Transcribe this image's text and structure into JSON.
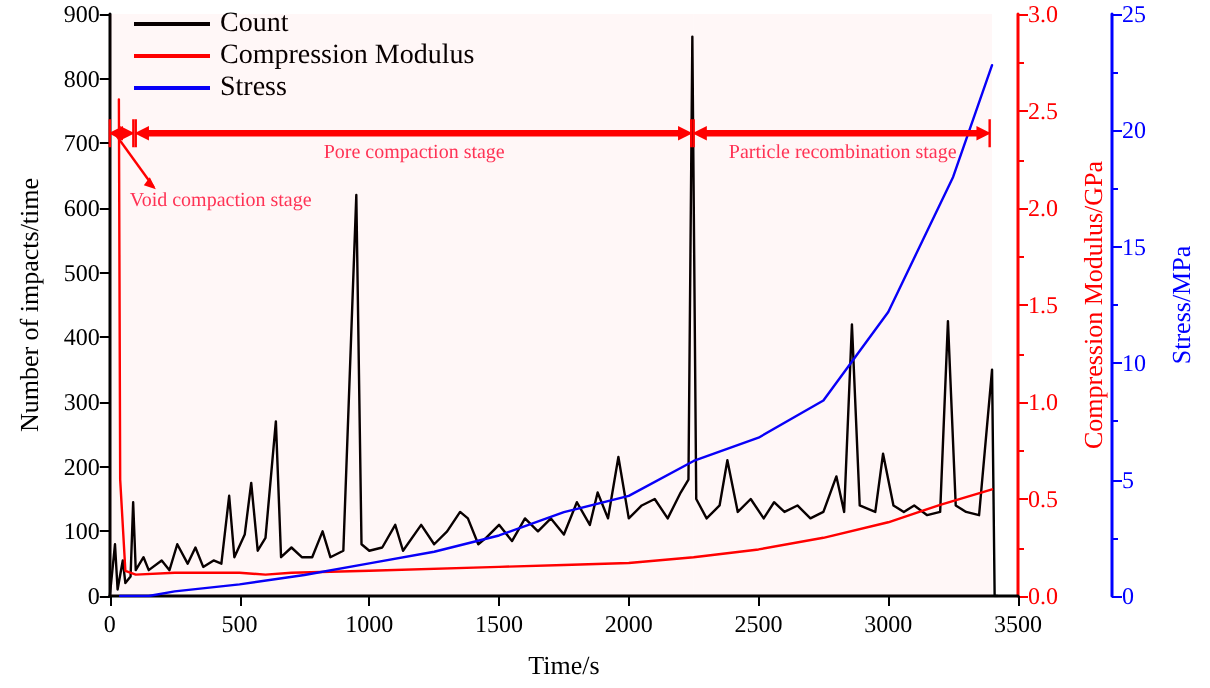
{
  "chart_data": {
    "type": "line",
    "xlabel": "Time/s",
    "ylabel": "Number of impacts/time",
    "y2label": "Compression Modulus/GPa",
    "y3label": "Stress/MPa",
    "xlim": [
      0,
      3500
    ],
    "xticks": [
      0,
      500,
      1000,
      1500,
      2000,
      2500,
      3000,
      3500
    ],
    "ylim": [
      0,
      900
    ],
    "yticks": [
      0,
      100,
      200,
      300,
      400,
      500,
      600,
      700,
      800,
      900
    ],
    "y2lim": [
      0,
      3.0
    ],
    "y2ticks": [
      {
        "value": 0,
        "label": "0.0"
      },
      {
        "value": 0.5,
        "label": "0.5"
      },
      {
        "value": 1,
        "label": "1.0"
      },
      {
        "value": 1.5,
        "label": "1.5"
      },
      {
        "value": 2,
        "label": "2.0"
      },
      {
        "value": 2.5,
        "label": "2.5"
      },
      {
        "value": 3,
        "label": "3.0"
      }
    ],
    "y3lim": [
      0,
      25
    ],
    "y3ticks": [
      0,
      5,
      10,
      15,
      20,
      25
    ],
    "legend": "top left",
    "grid": false,
    "series": [
      {
        "name": "Count",
        "color": "#000000",
        "x": [
          0,
          20,
          30,
          50,
          60,
          80,
          90,
          100,
          130,
          150,
          200,
          230,
          260,
          300,
          330,
          360,
          400,
          430,
          460,
          480,
          520,
          545,
          570,
          600,
          640,
          660,
          700,
          740,
          780,
          820,
          850,
          900,
          950,
          970,
          1000,
          1050,
          1100,
          1130,
          1200,
          1250,
          1300,
          1350,
          1380,
          1420,
          1450,
          1500,
          1550,
          1600,
          1650,
          1700,
          1750,
          1800,
          1850,
          1880,
          1920,
          1960,
          2000,
          2050,
          2100,
          2150,
          2200,
          2230,
          2245,
          2260,
          2300,
          2350,
          2380,
          2420,
          2470,
          2520,
          2560,
          2600,
          2650,
          2700,
          2750,
          2800,
          2830,
          2860,
          2890,
          2950,
          2980,
          3020,
          3060,
          3100,
          3150,
          3200,
          3230,
          3260,
          3300,
          3350,
          3400,
          3410,
          3420
        ],
        "values": [
          0,
          80,
          10,
          55,
          20,
          30,
          145,
          40,
          60,
          40,
          55,
          40,
          80,
          50,
          75,
          45,
          55,
          50,
          155,
          60,
          95,
          175,
          70,
          90,
          270,
          60,
          75,
          60,
          60,
          100,
          60,
          70,
          620,
          80,
          70,
          75,
          110,
          70,
          110,
          80,
          100,
          130,
          120,
          80,
          90,
          110,
          85,
          120,
          100,
          120,
          95,
          145,
          110,
          160,
          120,
          215,
          120,
          140,
          150,
          120,
          160,
          180,
          865,
          150,
          120,
          140,
          210,
          130,
          150,
          120,
          145,
          130,
          140,
          120,
          130,
          185,
          130,
          420,
          140,
          130,
          220,
          140,
          130,
          140,
          125,
          130,
          425,
          140,
          130,
          125,
          350,
          0,
          0
        ]
      },
      {
        "name": "Compression Modulus",
        "color": "#ff0000",
        "axis": "y2",
        "x": [
          35,
          40,
          60,
          100,
          250,
          500,
          600,
          700,
          1000,
          1500,
          1750,
          2000,
          2250,
          2500,
          2750,
          3000,
          3200,
          3400
        ],
        "values": [
          2.56,
          0.6,
          0.13,
          0.11,
          0.12,
          0.12,
          0.11,
          0.12,
          0.13,
          0.15,
          0.16,
          0.17,
          0.2,
          0.24,
          0.3,
          0.38,
          0.47,
          0.55
        ]
      },
      {
        "name": "Stress",
        "color": "#0000ff",
        "axis": "y3",
        "x": [
          40,
          150,
          250,
          500,
          750,
          1000,
          1250,
          1500,
          1750,
          2000,
          2250,
          2500,
          2750,
          3000,
          3250,
          3400
        ],
        "values": [
          0,
          0,
          0.2,
          0.5,
          0.9,
          1.4,
          1.9,
          2.6,
          3.6,
          4.3,
          5.8,
          6.8,
          8.4,
          12.2,
          18.0,
          22.8
        ]
      }
    ],
    "bands": [
      {
        "axis": "x",
        "from": 0,
        "to": 100,
        "label": "Void compaction stage",
        "color": "#ff0000"
      },
      {
        "axis": "x",
        "from": 100,
        "to": 2250,
        "label": "Pore compaction stage",
        "color": "#ff0000"
      },
      {
        "axis": "x",
        "from": 2250,
        "to": 3400,
        "label": "Particle recombination stage",
        "color": "#ff0000"
      }
    ]
  }
}
